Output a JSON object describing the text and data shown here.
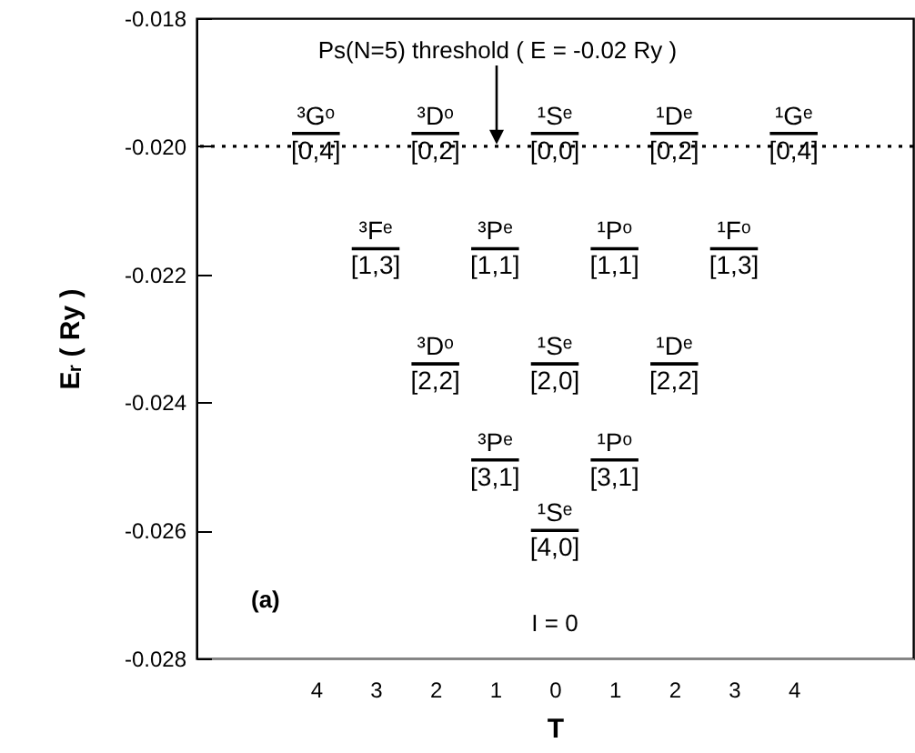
{
  "chart_data": {
    "type": "line",
    "xlabel": "T",
    "ylabel": "Eᵣ ( Ry )",
    "xlim": [
      -6,
      6
    ],
    "xticks": [
      {
        "value": -4,
        "label": "4"
      },
      {
        "value": -3,
        "label": "3"
      },
      {
        "value": -2,
        "label": "2"
      },
      {
        "value": -1,
        "label": "1"
      },
      0,
      {
        "value": 1,
        "label": "1"
      },
      2,
      3,
      4
    ],
    "ylim": [
      -0.028,
      -0.018
    ],
    "yticks": [
      -0.028,
      -0.026,
      -0.024,
      -0.022,
      {
        "value": -0.02,
        "label": "-0.020"
      },
      -0.018
    ],
    "tick_labels": "xy",
    "series": [
      {
        "color": "#000000",
        "x": [
          -4.4,
          -3.6
        ],
        "values": [
          -0.0198,
          -0.0198
        ],
        "value_labels": [
          "³Gᵒ",
          null
        ]
      },
      {
        "color": "#000000",
        "x": [
          -2.4,
          -1.6
        ],
        "values": [
          -0.0198,
          -0.0198
        ],
        "value_labels": [
          "³Dᵒ",
          null
        ]
      },
      {
        "color": "#000000",
        "x": [
          -0.4,
          0.4
        ],
        "values": [
          -0.0198,
          -0.0198
        ],
        "value_labels": [
          "¹Sᵉ",
          null
        ]
      },
      {
        "color": "#000000",
        "x": [
          1.6,
          2.4
        ],
        "values": [
          -0.0198,
          -0.0198
        ],
        "value_labels": [
          "¹Dᵉ",
          null
        ]
      },
      {
        "color": "#000000",
        "x": [
          3.6,
          4.4
        ],
        "values": [
          -0.0198,
          -0.0198
        ],
        "value_labels": [
          "¹Gᵉ",
          null
        ]
      },
      {
        "color": "#000000",
        "x": [
          -3.4,
          -2.6
        ],
        "values": [
          -0.0216,
          -0.0216
        ],
        "value_labels": [
          "³Fᵉ",
          null
        ]
      },
      {
        "color": "#000000",
        "x": [
          -1.4,
          -0.6
        ],
        "values": [
          -0.0216,
          -0.0216
        ],
        "value_labels": [
          "³Pᵉ",
          null
        ]
      },
      {
        "color": "#000000",
        "x": [
          0.6,
          1.4
        ],
        "values": [
          -0.0216,
          -0.0216
        ],
        "value_labels": [
          "¹Pᵒ",
          null
        ]
      },
      {
        "color": "#000000",
        "x": [
          2.6,
          3.4
        ],
        "values": [
          -0.0216,
          -0.0216
        ],
        "value_labels": [
          "¹Fᵒ",
          null
        ]
      },
      {
        "color": "#000000",
        "x": [
          -2.4,
          -1.6
        ],
        "values": [
          -0.0234,
          -0.0234
        ],
        "value_labels": [
          "³Dᵒ",
          null
        ]
      },
      {
        "color": "#000000",
        "x": [
          -0.4,
          0.4
        ],
        "values": [
          -0.0234,
          -0.0234
        ],
        "value_labels": [
          "¹Sᵉ",
          null
        ]
      },
      {
        "color": "#000000",
        "x": [
          1.6,
          2.4
        ],
        "values": [
          -0.0234,
          -0.0234
        ],
        "value_labels": [
          "¹Dᵉ",
          null
        ]
      },
      {
        "color": "#000000",
        "x": [
          -1.4,
          -0.6
        ],
        "values": [
          -0.0249,
          -0.0249
        ],
        "value_labels": [
          "³Pᵉ",
          null
        ]
      },
      {
        "color": "#000000",
        "x": [
          0.6,
          1.4
        ],
        "values": [
          -0.0249,
          -0.0249
        ],
        "value_labels": [
          "¹Pᵒ",
          null
        ]
      },
      {
        "color": "#000000",
        "x": [
          -0.4,
          0.4
        ],
        "values": [
          -0.026,
          -0.026
        ],
        "value_labels": [
          "¹Sᵉ",
          null
        ]
      }
    ],
    "ref_lines": [
      {
        "axis": "y",
        "value": -0.02,
        "label": "Ps(N=5) threshold ( E = -0.02 Ry )",
        "line_style": "dotted"
      }
    ],
    "annotations": [
      {
        "text": "[0,4]",
        "x": -4,
        "y": -0.0198
      },
      {
        "text": "[0,2]",
        "x": -2,
        "y": -0.0198
      },
      {
        "text": "[0,0]",
        "x": 0,
        "y": -0.0198
      },
      {
        "text": "[0,2]",
        "x": 2,
        "y": -0.0198
      },
      {
        "text": "[0,4]",
        "x": 4,
        "y": -0.0198
      },
      {
        "text": "[1,3]",
        "x": -3,
        "y": -0.0216
      },
      {
        "text": "[1,1]",
        "x": -1,
        "y": -0.0216
      },
      {
        "text": "[1,1]",
        "x": 1,
        "y": -0.0216
      },
      {
        "text": "[1,3]",
        "x": 3,
        "y": -0.0216
      },
      {
        "text": "[2,2]",
        "x": -2,
        "y": -0.0234
      },
      {
        "text": "[2,0]",
        "x": 0,
        "y": -0.0234
      },
      {
        "text": "[2,2]",
        "x": 2,
        "y": -0.0234
      },
      {
        "text": "[3,1]",
        "x": -1,
        "y": -0.0249
      },
      {
        "text": "[3,1]",
        "x": 1,
        "y": -0.0249
      },
      {
        "text": "[4,0]",
        "x": 0,
        "y": -0.026
      },
      "(a)",
      "I = 0"
    ]
  }
}
